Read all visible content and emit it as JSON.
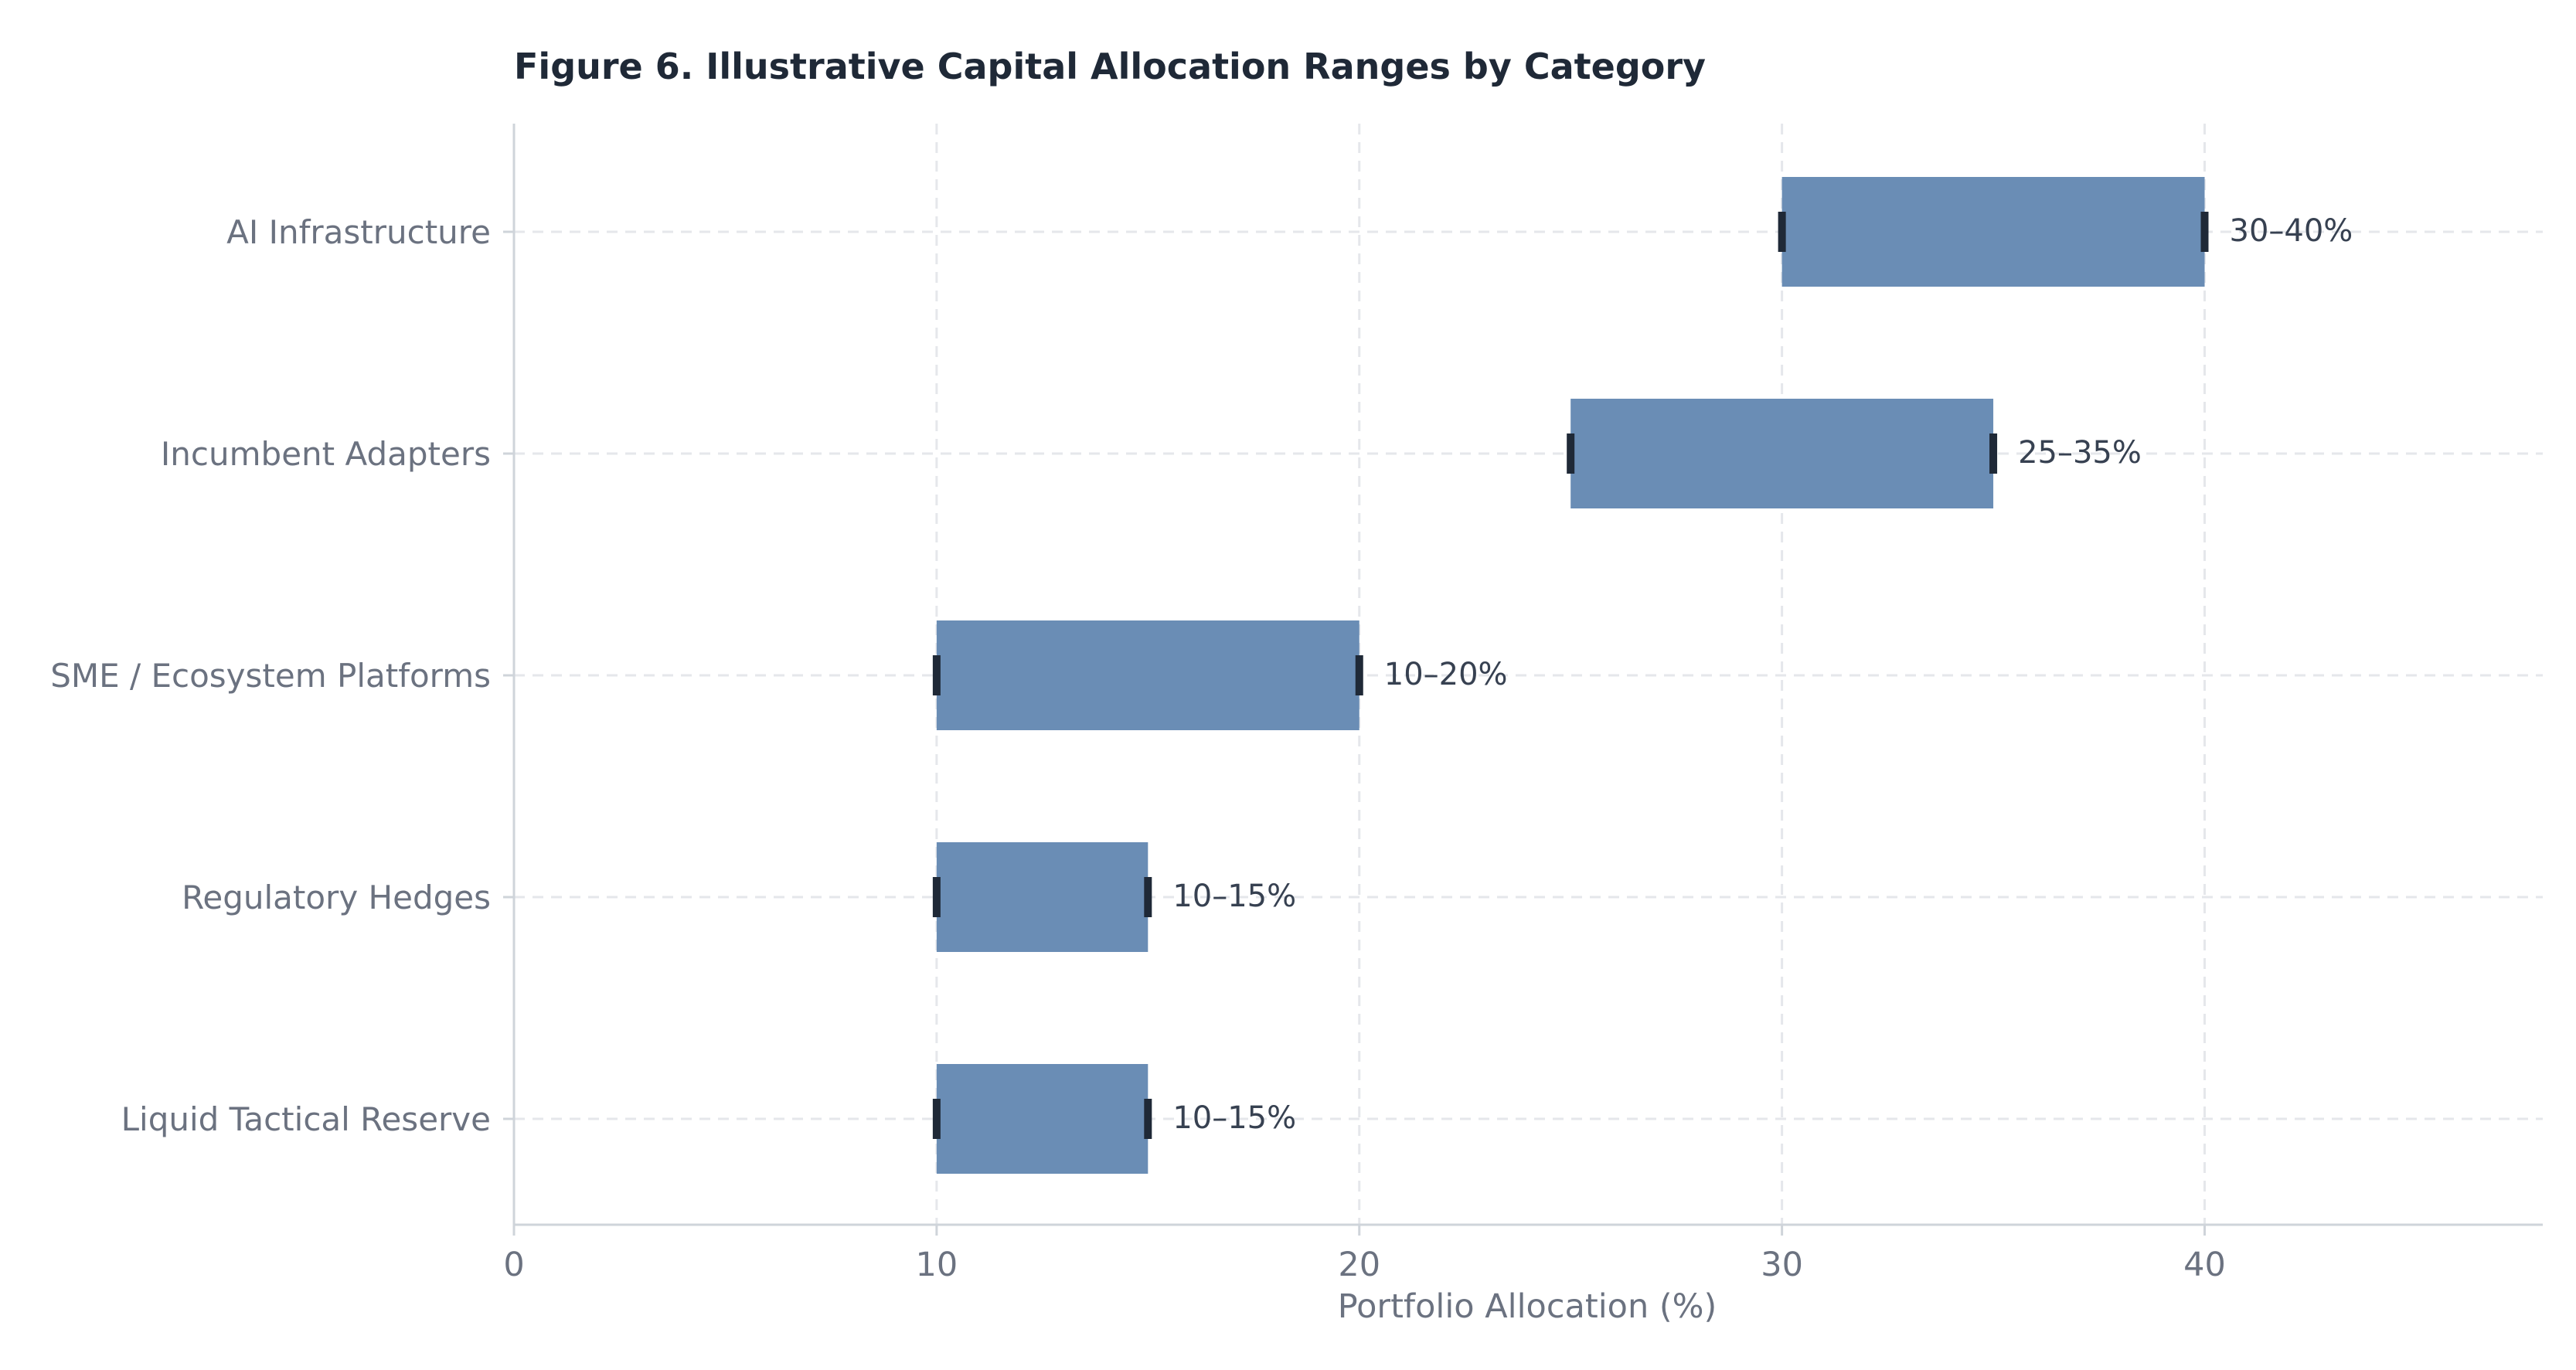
{
  "chart_data": {
    "type": "bar",
    "orientation": "horizontal",
    "title": "Figure 6.  Illustrative Capital Allocation Ranges by Category",
    "xlabel": "Portfolio Allocation (%)",
    "ylabel": "",
    "xlim": [
      0,
      48
    ],
    "xticks": [
      0,
      10,
      20,
      30,
      40
    ],
    "grid": true,
    "legend": "none",
    "categories": [
      "AI Infrastructure",
      "Incumbent Adapters",
      "SME / Ecosystem Platforms",
      "Regulatory Hedges",
      "Liquid Tactical Reserve"
    ],
    "ranges": [
      {
        "category": "AI Infrastructure",
        "low": 30,
        "high": 40,
        "label": "30–40%"
      },
      {
        "category": "Incumbent Adapters",
        "low": 25,
        "high": 35,
        "label": "25–35%"
      },
      {
        "category": "SME / Ecosystem Platforms",
        "low": 10,
        "high": 20,
        "label": "10–20%"
      },
      {
        "category": "Regulatory Hedges",
        "low": 10,
        "high": 15,
        "label": "10–15%"
      },
      {
        "category": "Liquid Tactical Reserve",
        "low": 10,
        "high": 15,
        "label": "10–15%"
      }
    ]
  },
  "colors": {
    "bar": "#6a8db5",
    "marker": "#1f2937",
    "axis": "#cfd4da",
    "grid": "#e5e7eb"
  }
}
